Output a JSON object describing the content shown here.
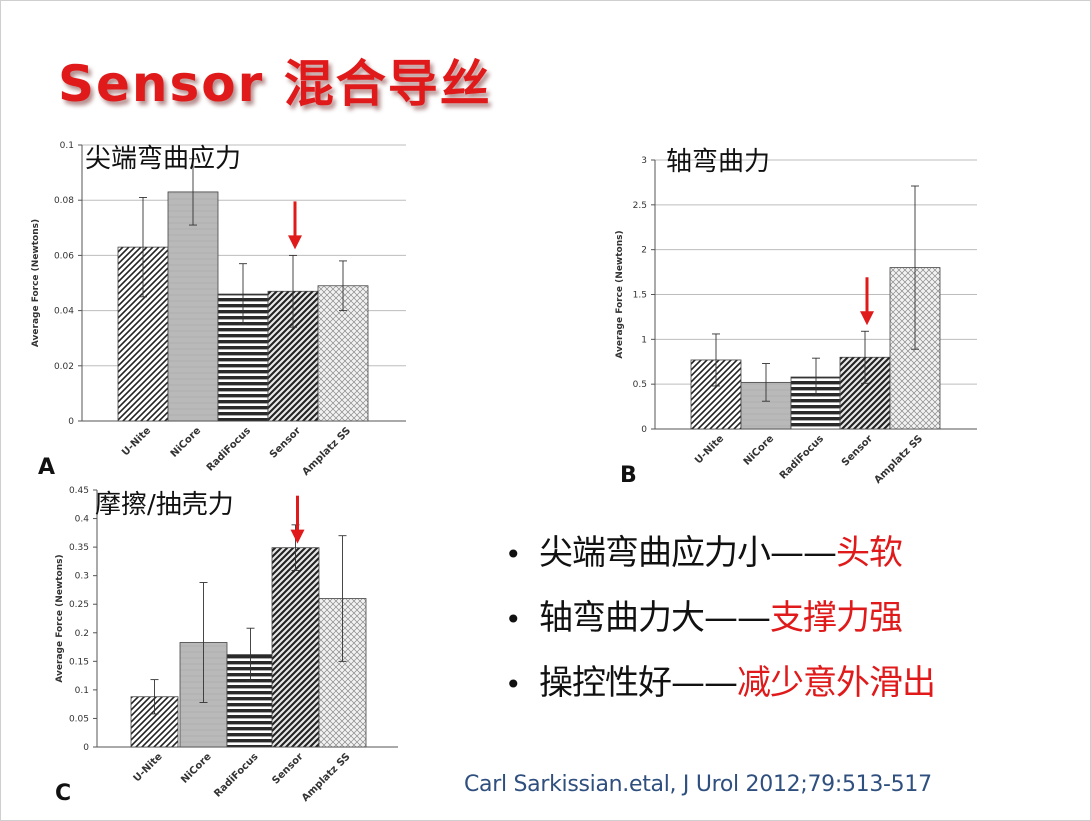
{
  "slide": {
    "title": "Sensor  混合导丝",
    "citation": "Carl Sarkissian.etal, J Urol 2012;79:513-517"
  },
  "colors": {
    "title": "#e01a1a",
    "arrow": "#e01a1a",
    "highlight": "#e01a1a",
    "citation": "#2f4f7f",
    "grid": "#bdbdbd"
  },
  "bullets": [
    {
      "main": "尖端弯曲应力小——",
      "emph": "头软"
    },
    {
      "main": "轴弯曲力大——",
      "emph": "支撑力强"
    },
    {
      "main": "操控性好——",
      "emph": "减少意外滑出"
    }
  ],
  "chart_data": [
    {
      "type": "bar",
      "panel": "A",
      "title": "尖端弯曲应力",
      "ylabel": "Average Force (Newtons)",
      "ylim": [
        0,
        0.1
      ],
      "yticks": [
        "0",
        "0.02",
        "0.04",
        "0.06",
        "0.08",
        "0.1"
      ],
      "categories": [
        "U-Nite",
        "NiCore",
        "RadiFocus",
        "Sensor",
        "Amplatz SS"
      ],
      "values": [
        0.063,
        0.083,
        0.046,
        0.047,
        0.049
      ],
      "errors": [
        0.018,
        0.012,
        0.011,
        0.013,
        0.009
      ],
      "highlight": "Sensor",
      "grid": true
    },
    {
      "type": "bar",
      "panel": "B",
      "title": "轴弯曲力",
      "ylabel": "Average Force (Newtons)",
      "ylim": [
        0,
        3
      ],
      "yticks": [
        "0",
        "0.5",
        "1",
        "1.5",
        "2",
        "2.5",
        "3"
      ],
      "categories": [
        "U-Nite",
        "NiCore",
        "RadiFocus",
        "Sensor",
        "Amplatz SS"
      ],
      "values": [
        0.77,
        0.52,
        0.58,
        0.8,
        1.8
      ],
      "errors": [
        0.29,
        0.21,
        0.21,
        0.29,
        0.91
      ],
      "highlight": "Sensor",
      "grid": true
    },
    {
      "type": "bar",
      "panel": "C",
      "title": "摩擦/抽壳力",
      "ylabel": "Average Force (Newtons)",
      "ylim": [
        0,
        0.45
      ],
      "yticks": [
        "0",
        "0.05",
        "0.1",
        "0.15",
        "0.2",
        "0.25",
        "0.3",
        "0.35",
        "0.4",
        "0.45"
      ],
      "categories": [
        "U-Nite",
        "NiCore",
        "RadiFocus",
        "Sensor",
        "Amplatz SS"
      ],
      "values": [
        0.088,
        0.183,
        0.162,
        0.349,
        0.26
      ],
      "errors": [
        0.03,
        0.105,
        0.046,
        0.04,
        0.11
      ],
      "highlight": "Sensor",
      "grid": false
    }
  ]
}
